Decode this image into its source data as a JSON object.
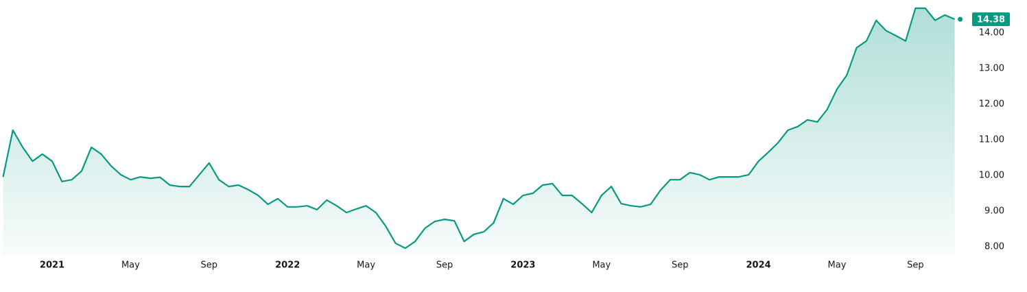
{
  "chart_data": {
    "type": "area",
    "color": "#089981",
    "grid": false,
    "categories": [
      null,
      null,
      null,
      null,
      null,
      "2021",
      null,
      null,
      null,
      null,
      null,
      null,
      null,
      "May",
      null,
      null,
      null,
      null,
      null,
      null,
      null,
      "Sep",
      null,
      null,
      null,
      null,
      null,
      null,
      null,
      "2022",
      null,
      null,
      null,
      null,
      null,
      null,
      null,
      "May",
      null,
      null,
      null,
      null,
      null,
      null,
      null,
      "Sep",
      null,
      null,
      null,
      null,
      null,
      null,
      null,
      "2023",
      null,
      null,
      null,
      null,
      null,
      null,
      null,
      "May",
      null,
      null,
      null,
      null,
      null,
      null,
      null,
      "Sep",
      null,
      null,
      null,
      null,
      null,
      null,
      null,
      "2024",
      null,
      null,
      null,
      null,
      null,
      null,
      null,
      "May",
      null,
      null,
      null,
      null,
      null,
      null,
      null,
      "Sep",
      null,
      null,
      null,
      null
    ],
    "series": [
      {
        "color": "#089981",
        "values": [
          9.96,
          11.27,
          10.79,
          10.4,
          10.6,
          10.4,
          9.83,
          9.88,
          10.12,
          10.79,
          10.6,
          10.27,
          10.02,
          9.88,
          9.96,
          9.92,
          9.95,
          9.73,
          9.69,
          9.69,
          10.02,
          10.35,
          9.88,
          9.69,
          9.73,
          9.6,
          9.44,
          9.19,
          9.35,
          9.12,
          9.12,
          9.15,
          9.04,
          9.31,
          9.15,
          8.96,
          9.06,
          9.15,
          8.96,
          8.58,
          8.1,
          7.96,
          8.15,
          8.52,
          8.71,
          8.77,
          8.73,
          8.15,
          8.35,
          8.42,
          8.67,
          9.35,
          9.19,
          9.44,
          9.5,
          9.73,
          9.77,
          9.44,
          9.44,
          9.21,
          8.96,
          9.44,
          9.69,
          9.21,
          9.15,
          9.12,
          9.19,
          9.58,
          9.88,
          9.88,
          10.08,
          10.02,
          9.88,
          9.96,
          9.96,
          9.96,
          10.02,
          10.4,
          10.65,
          10.92,
          11.27,
          11.37,
          11.56,
          11.5,
          11.85,
          12.42,
          12.81,
          13.58,
          13.77,
          14.35,
          14.06,
          13.92,
          13.77,
          14.69,
          14.69,
          14.35,
          14.5,
          14.38
        ]
      }
    ],
    "ylim": [
      7.77,
      14.92
    ],
    "yticks": [
      {
        "value": 8,
        "label": "8.00"
      },
      {
        "value": 9,
        "label": "9.00"
      },
      {
        "value": 10,
        "label": "10.00"
      },
      {
        "value": 11,
        "label": "11.00"
      },
      {
        "value": 12,
        "label": "12.00"
      },
      {
        "value": 13,
        "label": "13.00"
      },
      {
        "value": 14,
        "label": "14.00"
      }
    ]
  }
}
